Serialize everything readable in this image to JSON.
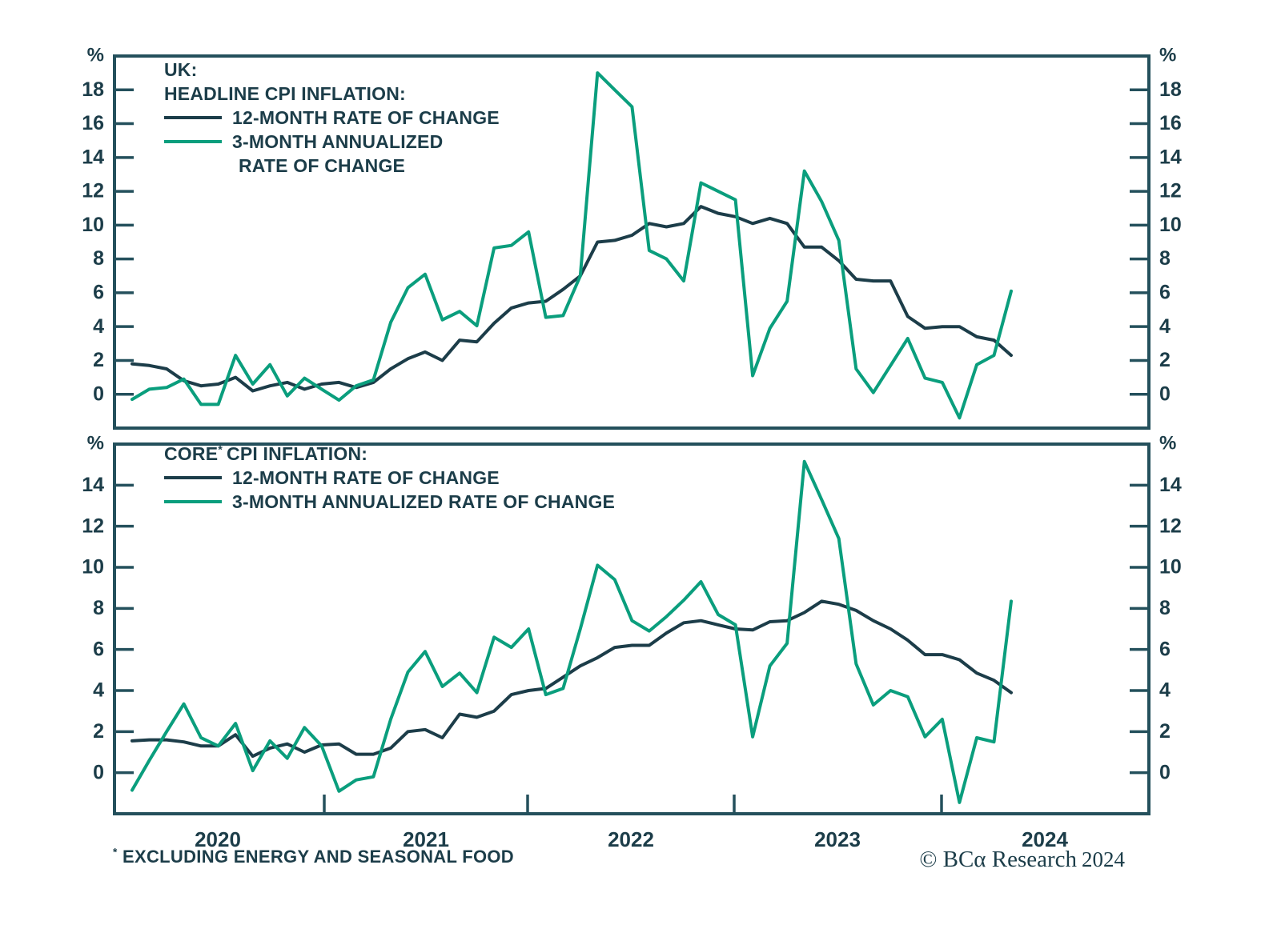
{
  "figure": {
    "footnote_sup": "*",
    "footnote_text": "EXCLUDING ENERGY AND SEASONAL FOOD",
    "copyright": "© BCα Research",
    "copyright_year": "2024",
    "colors": {
      "dark": "#1c3d49",
      "green": "#0a9e7d",
      "frame": "#24505c"
    }
  },
  "x_axis": {
    "frequency": "monthly",
    "start": "2020-01",
    "end": "2024-04",
    "year_labels": [
      "2020",
      "2021",
      "2022",
      "2023",
      "2024"
    ]
  },
  "chart_data": [
    {
      "type": "line",
      "title": "UK: HEADLINE CPI INFLATION",
      "unit": "%",
      "ylim": [
        -2,
        20
      ],
      "yticks": [
        0,
        2,
        4,
        6,
        8,
        10,
        12,
        14,
        16,
        18
      ],
      "grid": false,
      "legend": {
        "position": "top-left",
        "title_lines": [
          "UK:",
          "HEADLINE CPI INFLATION:"
        ],
        "items": [
          {
            "color": "dark",
            "label_lines": [
              "12-MONTH RATE OF CHANGE"
            ]
          },
          {
            "color": "green",
            "label_lines": [
              "3-MONTH ANNUALIZED",
              "RATE OF CHANGE"
            ]
          }
        ]
      },
      "series": [
        {
          "name": "12-month rate of change",
          "color": "dark",
          "values": [
            1.8,
            1.7,
            1.5,
            0.8,
            0.5,
            0.6,
            1.0,
            0.2,
            0.5,
            0.7,
            0.3,
            0.6,
            0.7,
            0.4,
            0.7,
            1.5,
            2.1,
            2.5,
            2.0,
            3.2,
            3.1,
            4.2,
            5.1,
            5.4,
            5.5,
            6.2,
            7.0,
            9.0,
            9.1,
            9.4,
            10.1,
            9.9,
            10.1,
            11.1,
            10.7,
            10.5,
            10.1,
            10.4,
            10.1,
            8.7,
            8.7,
            7.9,
            6.8,
            6.7,
            6.7,
            4.6,
            3.9,
            4.0,
            4.0,
            3.4,
            3.2,
            2.3
          ]
        },
        {
          "name": "3-month annualized rate of change",
          "color": "green",
          "values": [
            -0.3,
            0.3,
            0.4,
            0.9,
            -0.6,
            -0.6,
            2.3,
            0.6,
            1.75,
            -0.1,
            0.95,
            0.3,
            -0.35,
            0.5,
            0.85,
            4.25,
            6.3,
            7.1,
            4.4,
            4.9,
            4.05,
            8.65,
            8.8,
            9.6,
            4.55,
            4.65,
            7.0,
            19.0,
            18.0,
            17.0,
            8.5,
            8.0,
            6.7,
            12.5,
            12.0,
            11.5,
            1.1,
            3.9,
            5.5,
            13.2,
            11.4,
            9.1,
            1.5,
            0.1,
            1.7,
            3.3,
            0.95,
            0.7,
            -1.4,
            1.75,
            2.3,
            6.1
          ]
        }
      ]
    },
    {
      "type": "line",
      "title": "CORE* CPI INFLATION",
      "unit": "%",
      "ylim": [
        -2,
        16
      ],
      "yticks": [
        0,
        2,
        4,
        6,
        8,
        10,
        12,
        14
      ],
      "grid": false,
      "legend": {
        "position": "top-left",
        "title_pre": "CORE",
        "title_sup": "*",
        "title_post": "CPI INFLATION:",
        "items": [
          {
            "color": "dark",
            "label_lines": [
              "12-MONTH RATE OF CHANGE"
            ]
          },
          {
            "color": "green",
            "label_lines": [
              "3-MONTH ANNUALIZED RATE OF CHANGE"
            ]
          }
        ]
      },
      "series": [
        {
          "name": "12-month rate of change",
          "color": "dark",
          "values": [
            1.55,
            1.6,
            1.6,
            1.5,
            1.3,
            1.3,
            1.85,
            0.8,
            1.2,
            1.4,
            1.0,
            1.35,
            1.4,
            0.9,
            0.9,
            1.2,
            2.0,
            2.1,
            1.7,
            2.85,
            2.7,
            3.0,
            3.8,
            4.0,
            4.1,
            4.65,
            5.2,
            5.6,
            6.1,
            6.2,
            6.2,
            6.8,
            7.3,
            7.4,
            7.2,
            7.0,
            6.95,
            7.35,
            7.4,
            7.8,
            8.35,
            8.2,
            7.9,
            7.4,
            7.0,
            6.45,
            5.75,
            5.75,
            5.5,
            4.85,
            4.5,
            3.9
          ]
        },
        {
          "name": "3-month annualized rate of change",
          "color": "green",
          "values": [
            -0.85,
            0.6,
            2.0,
            3.35,
            1.7,
            1.3,
            2.4,
            0.1,
            1.55,
            0.7,
            2.2,
            1.3,
            -0.9,
            -0.35,
            -0.2,
            2.6,
            4.9,
            5.9,
            4.2,
            4.85,
            3.9,
            6.6,
            6.1,
            7.0,
            3.8,
            4.1,
            7.0,
            10.1,
            9.4,
            7.4,
            6.9,
            7.6,
            8.4,
            9.3,
            7.7,
            7.2,
            1.75,
            5.2,
            6.3,
            15.15,
            13.3,
            11.4,
            5.3,
            3.3,
            4.0,
            3.7,
            1.75,
            2.6,
            -1.45,
            1.7,
            1.5,
            8.35
          ]
        }
      ]
    }
  ]
}
